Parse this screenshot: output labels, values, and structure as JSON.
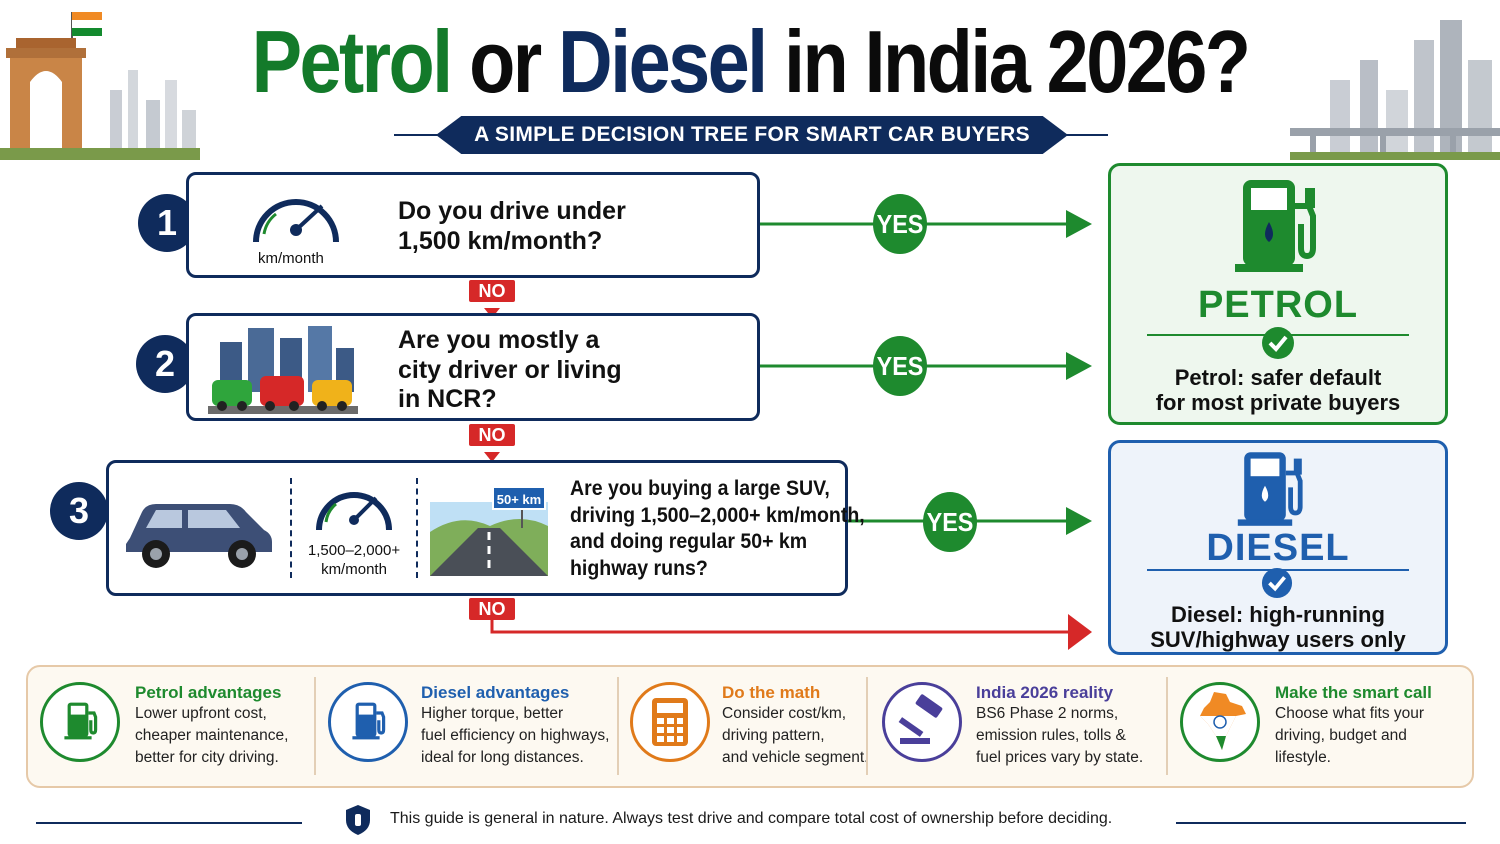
{
  "header": {
    "title_petrol": "Petrol",
    "title_or": " or ",
    "title_diesel": "Diesel",
    "title_rest": " in India 2026?",
    "subtitle": "A SIMPLE DECISION TREE FOR SMART CAR BUYERS"
  },
  "questions": [
    {
      "number": "1",
      "text_line1": "Do you drive under",
      "text_line2": "1,500 km/month?",
      "icon_label": "km/month",
      "icon": "speedometer-icon"
    },
    {
      "number": "2",
      "text_line1": "Are you mostly a",
      "text_line2": "city driver or living",
      "text_line3": "in NCR?",
      "icon": "city-traffic-icon"
    },
    {
      "number": "3",
      "text_line1": "Are you buying a large SUV,",
      "text_line2": "driving 1,500–2,000+ km/month,",
      "text_line3": "and doing regular 50+ km",
      "text_line4": "highway runs?",
      "icon_label_line1": "1,500–2,000+",
      "icon_label_line2": "km/month",
      "sign_label": "50+ km",
      "icons": [
        "suv-icon",
        "speedometer-icon",
        "highway-icon"
      ]
    }
  ],
  "answers": {
    "yes": "YES",
    "no": "NO"
  },
  "results": {
    "petrol": {
      "title": "PETROL",
      "desc_line1": "Petrol: safer default",
      "desc_line2": "for most private buyers",
      "color": "#1e8a2e",
      "icon": "fuel-pump-icon"
    },
    "diesel": {
      "title": "DIESEL",
      "desc_line1": "Diesel: high-running",
      "desc_line2": "SUV/highway users only",
      "color": "#1f5fae",
      "icon": "fuel-pump-icon"
    }
  },
  "info": [
    {
      "title": "Petrol advantages",
      "line1": "Lower upfront cost,",
      "line2": "cheaper maintenance,",
      "line3": "better for city driving.",
      "color": "#1e8a2e",
      "icon": "fuel-pump-icon"
    },
    {
      "title": "Diesel advantages",
      "line1": "Higher torque, better",
      "line2": "fuel efficiency on highways,",
      "line3": "ideal for long distances.",
      "color": "#1f5fae",
      "icon": "fuel-pump-icon"
    },
    {
      "title": "Do the math",
      "line1": "Consider cost/km,",
      "line2": "driving pattern,",
      "line3": "and vehicle segment.",
      "color": "#e07a1a",
      "icon": "calculator-icon"
    },
    {
      "title": "India 2026 reality",
      "line1": "BS6 Phase 2 norms,",
      "line2": "emission rules, tolls &",
      "line3": "fuel prices vary by state.",
      "color": "#4a3f9a",
      "icon": "gavel-icon"
    },
    {
      "title": "Make the smart call",
      "line1": "Choose what fits your",
      "line2": "driving, budget and",
      "line3": "lifestyle.",
      "color": "#1e8a2e",
      "icon": "india-map-icon"
    }
  ],
  "footer": {
    "text": "This guide is general in nature. Always test drive and compare total cost of ownership before deciding.",
    "icon": "shield-icon"
  }
}
